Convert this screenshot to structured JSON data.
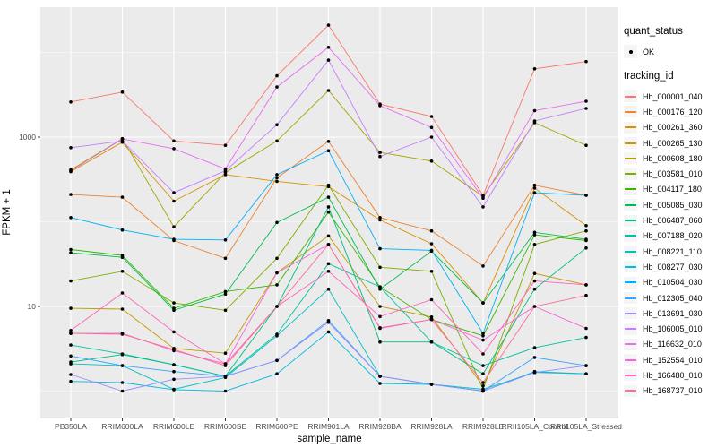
{
  "chart_data": {
    "type": "line",
    "xlabel": "sample_name",
    "ylabel": "FPKM + 1",
    "y_scale": "log10",
    "grid": "on",
    "legend_position": "right",
    "x_categories": [
      "PB350LA",
      "RRIM600LA",
      "RRIM600LE",
      "RRIM600SE",
      "RRIM600PE",
      "RRIM901LA",
      "RRIM928BA",
      "RRIM928LA",
      "RRIM928LE",
      "RRII105LA_Control",
      "RRII105LA_Stressed"
    ],
    "y_ticks": [
      {
        "value": 10,
        "label": "10"
      },
      {
        "value": 1000,
        "label": "1000"
      }
    ],
    "y_minor_ticks": [
      1,
      100,
      10000
    ],
    "ylim": [
      0.5,
      30000
    ],
    "point_color": "#000000",
    "series": [
      {
        "name": "Hb_000001_040",
        "color": "#F8766D",
        "values": [
          2600,
          3400,
          900,
          800,
          5300,
          21000,
          2450,
          1750,
          205,
          6400,
          7800
        ]
      },
      {
        "name": "Hb_000176_120",
        "color": "#EA8331",
        "values": [
          210,
          195,
          60,
          37,
          330,
          890,
          112,
          78,
          30,
          270,
          205
        ]
      },
      {
        "name": "Hb_000261_360",
        "color": "#D89000",
        "values": [
          390,
          870,
          175,
          360,
          300,
          260,
          105,
          55,
          11,
          250,
          90
        ]
      },
      {
        "name": "Hb_000265_130",
        "color": "#C09B00",
        "values": [
          9.5,
          9.3,
          3.2,
          2.8,
          25,
          68,
          10,
          7.5,
          1.15,
          24.5,
          18
        ]
      },
      {
        "name": "Hb_000608_180",
        "color": "#A3A500",
        "values": [
          410,
          960,
          87,
          380,
          900,
          3550,
          660,
          520,
          200,
          1480,
          800
        ]
      },
      {
        "name": "Hb_003581_010",
        "color": "#7CAE00",
        "values": [
          20,
          26,
          11,
          9,
          37,
          270,
          29,
          26,
          1.05,
          54,
          78
        ]
      },
      {
        "name": "Hb_004117_180",
        "color": "#39B600",
        "values": [
          47,
          40,
          9.5,
          15,
          18,
          130,
          17,
          7,
          4.5,
          70,
          60
        ]
      },
      {
        "name": "Hb_005085_030",
        "color": "#00BB4E",
        "values": [
          43,
          38,
          9,
          14,
          98,
          195,
          16,
          45,
          11,
          75,
          62
        ]
      },
      {
        "name": "Hb_006487_060",
        "color": "#00BF7D",
        "values": [
          2.2,
          2.7,
          2.05,
          1.5,
          10,
          150,
          3.8,
          3.8,
          1.6,
          16,
          49
        ]
      },
      {
        "name": "Hb_007188_020",
        "color": "#00C1A3",
        "values": [
          3.5,
          2.75,
          2.05,
          1.5,
          4.7,
          32,
          17,
          3.8,
          2.0,
          3.25,
          4.3
        ]
      },
      {
        "name": "Hb_008221_110",
        "color": "#00BFC4",
        "values": [
          2.1,
          2.0,
          1.05,
          1.45,
          4.5,
          16,
          1.5,
          1.2,
          1.05,
          1.66,
          1.6
        ]
      },
      {
        "name": "Hb_008277_030",
        "color": "#00BAE0",
        "values": [
          1.3,
          1.26,
          1.04,
          1.0,
          1.6,
          5.0,
          1.23,
          1.2,
          1.0,
          1.7,
          1.6
        ]
      },
      {
        "name": "Hb_010504_030",
        "color": "#00B0F6",
        "values": [
          112,
          80,
          62,
          61,
          360,
          690,
          48,
          46,
          4.8,
          220,
          205
        ]
      },
      {
        "name": "Hb_012305_040",
        "color": "#35A2FF",
        "values": [
          2.6,
          2.0,
          1.7,
          1.5,
          2.3,
          6.8,
          1.5,
          1.2,
          1.0,
          2.5,
          2.0
        ]
      },
      {
        "name": "Hb_013691_030",
        "color": "#9590FF",
        "values": [
          1.57,
          1.0,
          1.38,
          1.5,
          2.3,
          6.5,
          1.5,
          1.2,
          1.0,
          1.66,
          2.0
        ]
      },
      {
        "name": "Hb_106005_010",
        "color": "#C77CFF",
        "values": [
          750,
          900,
          220,
          400,
          1400,
          8100,
          590,
          1000,
          150,
          1550,
          2180
        ]
      },
      {
        "name": "Hb_116632_010",
        "color": "#E76BF3",
        "values": [
          400,
          950,
          730,
          420,
          3900,
          11500,
          2350,
          1300,
          190,
          2050,
          2650
        ]
      },
      {
        "name": "Hb_152554_010",
        "color": "#FA62DB",
        "values": [
          4.8,
          4.8,
          3.0,
          2.1,
          25,
          54,
          5.5,
          7,
          4.0,
          10,
          5.5
        ]
      },
      {
        "name": "Hb_166480_010",
        "color": "#FF62BC",
        "values": [
          5.2,
          14.4,
          5.0,
          2.1,
          10,
          26,
          7.6,
          12,
          2.75,
          20,
          18
        ]
      },
      {
        "name": "Hb_168737_010",
        "color": "#FF6A98",
        "values": [
          4.8,
          4.7,
          3.1,
          2.0,
          10,
          54,
          5.6,
          7,
          1.26,
          10,
          13.5
        ]
      }
    ],
    "panel_color": "#EBEBEB",
    "gridline_color": "#FFFFFF",
    "tick_label_color": "#4D4D4D"
  },
  "legend": {
    "quant_status_title": "quant_status",
    "quant_status_items": [
      {
        "label": "OK",
        "marker": "point"
      }
    ],
    "tracking_id_title": "tracking_id"
  }
}
